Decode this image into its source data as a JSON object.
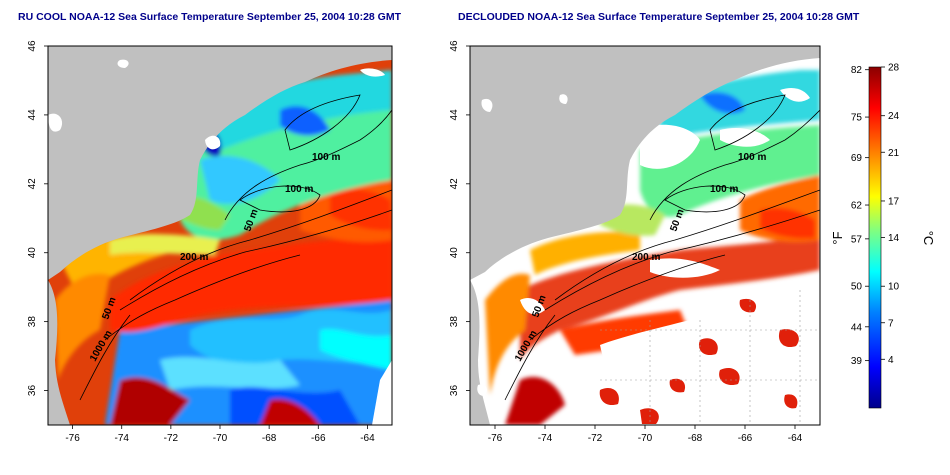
{
  "panels": [
    {
      "title": "RU COOL NOAA-12 Sea Surface Temperature September 25, 2004 10:28 GMT",
      "product": "raw"
    },
    {
      "title": "DECLOUDED NOAA-12 Sea Surface Temperature September 25, 2004 10:28 GMT",
      "product": "declouded"
    }
  ],
  "map": {
    "lat_ticks": [
      "36",
      "38",
      "40",
      "42",
      "44",
      "46"
    ],
    "lon_ticks": [
      "-76",
      "-74",
      "-72",
      "-70",
      "-68",
      "-66",
      "-64"
    ],
    "lat_range": [
      35,
      46
    ],
    "lon_range": [
      -77,
      -63
    ],
    "contour_labels": [
      "100 m",
      "100 m",
      "50 m",
      "200 m",
      "50 m",
      "1000 m"
    ],
    "colors": {
      "land": "#c0c0c0",
      "cloud": "#ffffff",
      "axis": "#000000"
    }
  },
  "colorbar": {
    "fahrenheit_ticks": [
      "82",
      "75",
      "69",
      "62",
      "57",
      "50",
      "44",
      "39"
    ],
    "celsius_ticks": [
      "28",
      "24",
      "21",
      "17",
      "14",
      "10",
      "7",
      "4"
    ],
    "fahrenheit_unit": "°F",
    "celsius_unit": "°C",
    "range_c": [
      0,
      28
    ],
    "stops": [
      "#00008b",
      "#0000ff",
      "#0080ff",
      "#00ffff",
      "#80ff80",
      "#ffff00",
      "#ff8000",
      "#ff0000",
      "#8b0000"
    ]
  }
}
